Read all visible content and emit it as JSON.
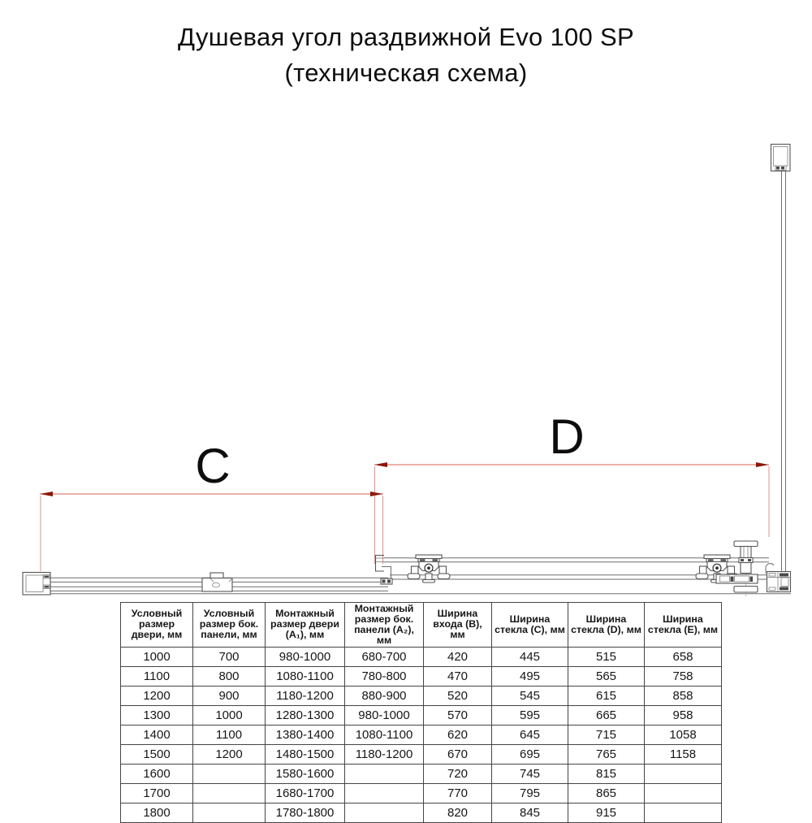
{
  "title": {
    "line1": "Душевая угол раздвижной Evo 100 SP",
    "line2": "(техническая схема)"
  },
  "diagram": {
    "dim_c_label": "C",
    "dim_d_label": "D",
    "colors": {
      "dimension_line": "#cd3a28",
      "dimension_arrow": "#8f1507",
      "drawing_line": "#6e6e6e"
    }
  },
  "table": {
    "headers": [
      "Условный размер двери, мм",
      "Условный размер бок. панели, мм",
      "Монтажный размер двери (A₁), мм",
      "Монтажный размер бок. панели (A₂), мм",
      "Ширина входа (B), мм",
      "Ширина стекла (C), мм",
      "Ширина стекла (D), мм",
      "Ширина стекла (E), мм"
    ],
    "rows": [
      [
        "1000",
        "700",
        "980-1000",
        "680-700",
        "420",
        "445",
        "515",
        "658"
      ],
      [
        "1100",
        "800",
        "1080-1100",
        "780-800",
        "470",
        "495",
        "565",
        "758"
      ],
      [
        "1200",
        "900",
        "1180-1200",
        "880-900",
        "520",
        "545",
        "615",
        "858"
      ],
      [
        "1300",
        "1000",
        "1280-1300",
        "980-1000",
        "570",
        "595",
        "665",
        "958"
      ],
      [
        "1400",
        "1100",
        "1380-1400",
        "1080-1100",
        "620",
        "645",
        "715",
        "1058"
      ],
      [
        "1500",
        "1200",
        "1480-1500",
        "1180-1200",
        "670",
        "695",
        "765",
        "1158"
      ],
      [
        "1600",
        "",
        "1580-1600",
        "",
        "720",
        "745",
        "815",
        ""
      ],
      [
        "1700",
        "",
        "1680-1700",
        "",
        "770",
        "795",
        "865",
        ""
      ],
      [
        "1800",
        "",
        "1780-1800",
        "",
        "820",
        "845",
        "915",
        ""
      ]
    ]
  }
}
